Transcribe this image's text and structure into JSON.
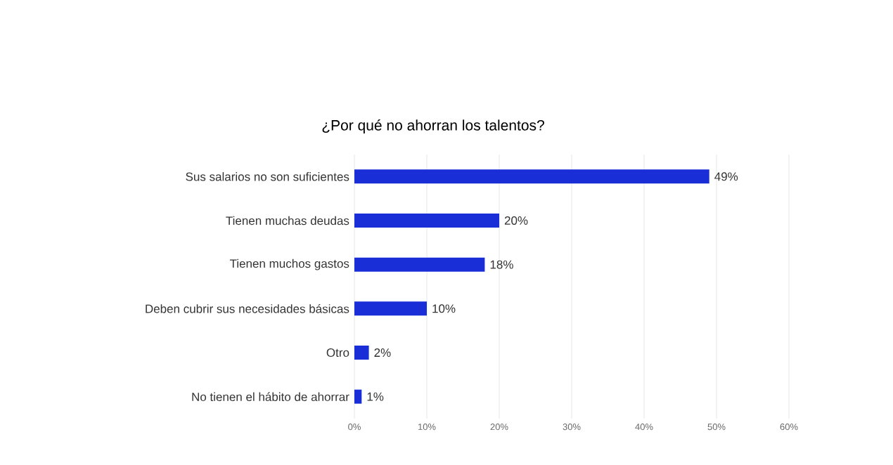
{
  "chart_data": {
    "type": "bar",
    "orientation": "horizontal",
    "title": "¿Por qué no ahorran los talentos?",
    "categories": [
      "Sus salarios no son suficientes",
      "Tienen muchas deudas",
      "Tienen muchos gastos",
      "Deben cubrir sus necesidades básicas",
      "Otro",
      "No tienen el hábito de ahorrar"
    ],
    "values": [
      49,
      20,
      18,
      10,
      2,
      1
    ],
    "value_labels": [
      "49%",
      "20%",
      "18%",
      "10%",
      "2%",
      "1%"
    ],
    "color": "#1a2ed8",
    "xlim": [
      0,
      60
    ],
    "xticks": [
      {
        "value": 0,
        "label": "0%"
      },
      {
        "value": 10,
        "label": "10%"
      },
      {
        "value": 20,
        "label": "20%"
      },
      {
        "value": 30,
        "label": "30%"
      },
      {
        "value": 40,
        "label": "40%"
      },
      {
        "value": 50,
        "label": "50%"
      },
      {
        "value": 60,
        "label": "60%"
      }
    ],
    "grid": "x"
  }
}
